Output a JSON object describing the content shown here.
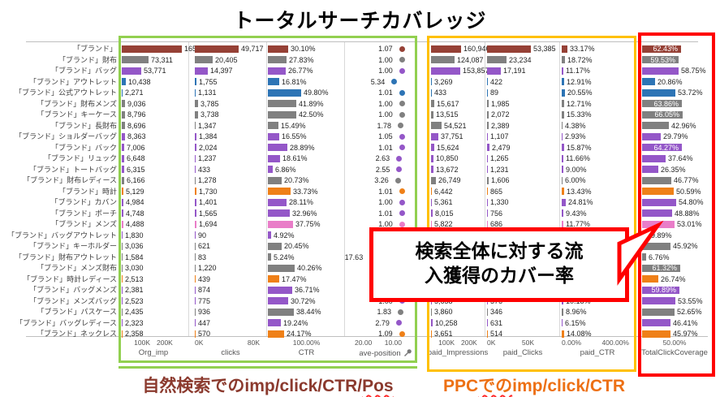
{
  "title": "トータルサーチカバレッジ",
  "callout": {
    "line1": "検索全体に対する流",
    "line2": "入獲得のカバー率"
  },
  "captions": {
    "organic": {
      "pre": "自然検索でのimp/click/CTR/",
      "wavy": "Pos",
      "post": ""
    },
    "ppc": {
      "pre": "PPC",
      "wavy": "での",
      "post": "imp/click/CTR"
    }
  },
  "colors": {
    "green_box": "#92d050",
    "orange_box": "#ffc000",
    "red_box": "#ff0000",
    "brick": "#964136",
    "gray": "#808080",
    "purple": "#9457c8",
    "blue": "#2d74b5",
    "orange": "#ef8018",
    "pink": "#e97dc8"
  },
  "chart_data": {
    "type": "bar",
    "title": "トータルサーチカバレッジ",
    "legend_position": "none",
    "grid": false,
    "categories": [
      "「ブランド」",
      "「ブランド」財布",
      "「ブランド」バッグ",
      "「ブランド」アウトレット",
      "「ブランド」公式アウトレット",
      "「ブランド」財布メンズ",
      "「ブランド」キーケース",
      "「ブランド」長財布",
      "「ブランド」ショルダーバッグ",
      "「ブランド」バック",
      "「ブランド」リュック",
      "「ブランド」トートバッグ",
      "「ブランド」財布レディース",
      "「ブランド」時計",
      "「ブランド」カバン",
      "「ブランド」ポーチ",
      "「ブランド」メンズ",
      "「ブランド」バッグアウトレット",
      "「ブランド」キーホルダー",
      "「ブランド」財布アウトレット",
      "「ブランド」メンズ財布",
      "「ブランド」時計レディース",
      "「ブランド」バッグメンズ",
      "「ブランド」メンズバッグ",
      "「ブランド」パスケース",
      "「ブランド」バッグレディース",
      "「ブランド」ネックレス"
    ],
    "row_colors": [
      "brick",
      "gray",
      "purple",
      "blue",
      "blue",
      "gray",
      "gray",
      "gray",
      "purple",
      "purple",
      "purple",
      "purple",
      "gray",
      "orange",
      "purple",
      "purple",
      "pink",
      "purple",
      "gray",
      "gray",
      "gray",
      "orange",
      "purple",
      "purple",
      "gray",
      "purple",
      "orange"
    ],
    "series": [
      {
        "name": "Org_imp",
        "ticks": [
          "100K",
          "200K"
        ],
        "tick_style": "center",
        "values": [
          "165,155",
          "73,311",
          "53,771",
          "10,438",
          "2,271",
          "9,036",
          "8,796",
          "8,696",
          "8,363",
          "7,006",
          "6,648",
          "6,315",
          "6,166",
          "5,129",
          "4,984",
          "4,748",
          "4,488",
          "1,830",
          "3,036",
          "1,584",
          "3,030",
          "2,513",
          "2,381",
          "2,523",
          "2,435",
          "2,323",
          "2,358"
        ]
      },
      {
        "name": "clicks",
        "ticks": [
          "0K",
          "80K"
        ],
        "tick_style": "justify",
        "values": [
          "49,717",
          "20,405",
          "14,397",
          "1,755",
          "1,131",
          "3,785",
          "3,738",
          "1,347",
          "1,384",
          "2,024",
          "1,237",
          "433",
          "1,278",
          "1,730",
          "1,401",
          "1,565",
          "1,694",
          "90",
          "621",
          "83",
          "1,220",
          "439",
          "874",
          "775",
          "936",
          "447",
          "570"
        ]
      },
      {
        "name": "CTR",
        "ticks": [
          "100.00%"
        ],
        "tick_style": "center",
        "values": [
          "30.10%",
          "27.83%",
          "26.77%",
          "16.81%",
          "49.80%",
          "41.89%",
          "42.50%",
          "15.49%",
          "16.55%",
          "28.89%",
          "18.61%",
          "6.86%",
          "20.73%",
          "33.73%",
          "28.11%",
          "32.96%",
          "37.75%",
          "4.92%",
          "20.45%",
          "5.24%",
          "40.26%",
          "17.47%",
          "36.71%",
          "30.72%",
          "38.44%",
          "19.24%",
          "24.17%"
        ]
      },
      {
        "name": "ave-position",
        "ticks": [
          "20.00",
          "10.00"
        ],
        "tick_style": "justify",
        "icon": "pin-icon",
        "values": [
          "1.07",
          "1.00",
          "1.00",
          "5.34",
          "1.01",
          "1.00",
          "1.00",
          "1.78",
          "1.05",
          "1.01",
          "2.63",
          "2.55",
          "3.26",
          "1.01",
          "1.00",
          "1.01",
          "1.00",
          "",
          "",
          "17.63",
          "",
          "",
          "",
          "1.00",
          "1.83",
          "2.79",
          "1.09"
        ]
      },
      {
        "name": "paid_Impressions",
        "ticks": [
          "100K",
          "200K"
        ],
        "tick_style": "center",
        "values": [
          "160,946",
          "124,087",
          "153,857",
          "3,269",
          "433",
          "15,617",
          "13,515",
          "54,521",
          "37,751",
          "15,624",
          "10,850",
          "13,672",
          "26,749",
          "6,442",
          "5,361",
          "8,015",
          "5,822",
          "",
          "",
          "",
          "",
          "",
          "",
          "5,658",
          "3,860",
          "10,258",
          "3,651"
        ]
      },
      {
        "name": "paid_Clicks",
        "ticks": [
          "0K",
          "50K"
        ],
        "tick_style": "justify",
        "values": [
          "53,385",
          "23,234",
          "17,191",
          "422",
          "89",
          "1,985",
          "2,072",
          "2,389",
          "1,107",
          "2,479",
          "1,265",
          "1,231",
          "1,606",
          "865",
          "1,330",
          "756",
          "686",
          "",
          "",
          "",
          "",
          "",
          "",
          "576",
          "346",
          "631",
          "514"
        ]
      },
      {
        "name": "paid_CTR",
        "ticks": [
          "0.00%",
          "400.00%"
        ],
        "tick_style": "justify",
        "values": [
          "33.17%",
          "18.72%",
          "11.17%",
          "12.91%",
          "20.55%",
          "12.71%",
          "15.33%",
          "4.38%",
          "2.93%",
          "15.87%",
          "11.66%",
          "9.00%",
          "6.00%",
          "13.43%",
          "24.81%",
          "9.43%",
          "11.77%",
          "",
          "",
          "",
          "",
          "",
          "",
          "10.18%",
          "8.96%",
          "6.15%",
          "14.08%"
        ]
      },
      {
        "name": "TotalClickCoverage",
        "ticks": [
          "50.00%"
        ],
        "tick_style": "center",
        "values": [
          "62.43%",
          "59.53%",
          "58.75%",
          "20.86%",
          "53.72%",
          "63.86%",
          "66.05%",
          "42.96%",
          "29.79%",
          "64.27%",
          "37.64%",
          "26.35%",
          "46.77%",
          "50.59%",
          "54.80%",
          "48.88%",
          "53.01%",
          "9.89%",
          "45.92%",
          "6.76%",
          "61.32%",
          "26.74%",
          "59.89%",
          "53.55%",
          "52.65%",
          "46.41%",
          "45.97%"
        ]
      }
    ]
  }
}
